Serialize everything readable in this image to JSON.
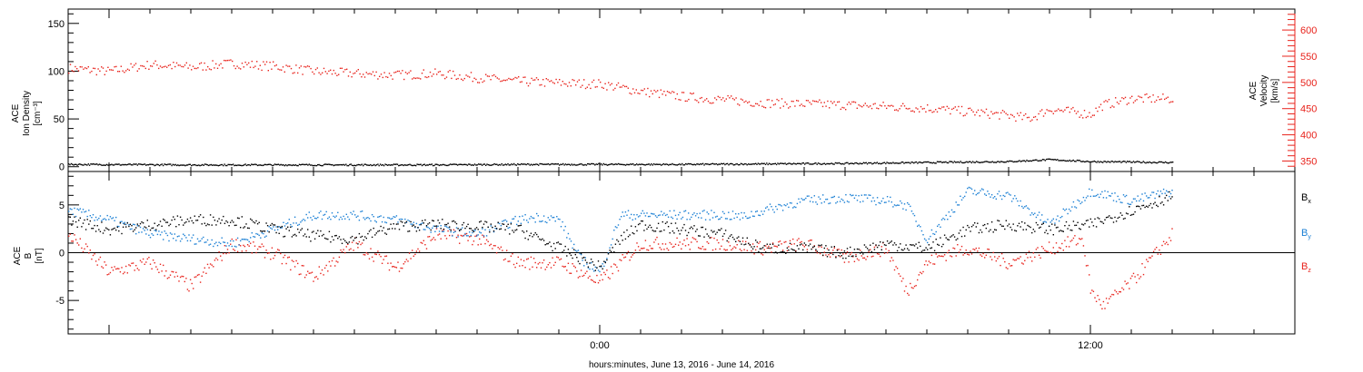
{
  "xlabel": "hours:minutes, June 13, 2016 - June 14, 2016",
  "colors": {
    "density": "#000000",
    "velocity": "#e8231c",
    "bx": "#000000",
    "by": "#1a7fd4",
    "bz": "#e8231c",
    "axis": "#000000"
  },
  "chart_data": [
    {
      "type": "scatter",
      "panel": "top",
      "ylabel": [
        "ACE",
        "Ion Density",
        "[cm⁻³]"
      ],
      "ylabel2": [
        "ACE",
        "Velocity",
        "[km/s]"
      ],
      "xlim_hours": [
        -13.0,
        17.0
      ],
      "x_tick_labels": [
        {
          "hour": 0,
          "label": "0:00"
        },
        {
          "hour": 12,
          "label": "12:00"
        }
      ],
      "ylim": [
        -5,
        165
      ],
      "y_ticks": [
        0,
        50,
        100,
        150
      ],
      "ylim2": [
        330,
        640
      ],
      "y2_ticks": [
        350,
        400,
        450,
        500,
        550,
        600
      ],
      "grid": false,
      "series": [
        {
          "axis": "left",
          "x_hours": [
            -13.0,
            -10.0,
            -7.0,
            -4.0,
            -2.0,
            0.0,
            2.0,
            4.0,
            6.0,
            8.0,
            9.0,
            10.0,
            11.0,
            12.0,
            13.0,
            14.0
          ],
          "values": [
            3,
            2.5,
            2.5,
            2.5,
            3,
            3,
            3,
            3.5,
            4,
            5,
            5.5,
            6,
            8,
            6,
            5.5,
            5
          ]
        },
        {
          "name": "Velocity",
          "axis": "right",
          "x_hours": [
            -13.0,
            -12.0,
            -11.0,
            -10.0,
            -9.0,
            -8.0,
            -7.0,
            -6.0,
            -5.0,
            -4.0,
            -3.0,
            -2.0,
            -1.0,
            0.0,
            1.0,
            2.0,
            3.0,
            4.0,
            5.0,
            6.0,
            7.0,
            8.0,
            9.0,
            10.0,
            10.5,
            11.0,
            11.8,
            12.0,
            12.3,
            13.0,
            14.0
          ],
          "values": [
            528,
            522,
            535,
            530,
            537,
            532,
            522,
            518,
            515,
            518,
            510,
            503,
            500,
            498,
            484,
            474,
            468,
            462,
            460,
            458,
            455,
            452,
            445,
            438,
            432,
            450,
            442,
            440,
            458,
            470,
            470
          ]
        }
      ]
    },
    {
      "type": "scatter",
      "panel": "bottom",
      "ylabel": [
        "ACE",
        "B",
        "[nT]"
      ],
      "xlim_hours": [
        -13.0,
        17.0
      ],
      "ylim": [
        -8.5,
        8.5
      ],
      "y_ticks": [
        -5,
        0,
        5
      ],
      "zero_line": true,
      "grid": false,
      "series": [
        {
          "name": "Bx",
          "legend_main": "B",
          "legend_sub": "x",
          "x_hours": [
            -13.0,
            -12.0,
            -11.0,
            -10.0,
            -9.0,
            -8.0,
            -7.0,
            -6.0,
            -5.0,
            -4.0,
            -3.0,
            -2.0,
            -1.0,
            -0.5,
            0.0,
            0.5,
            1.0,
            2.0,
            3.0,
            4.0,
            5.0,
            6.0,
            7.0,
            8.0,
            9.0,
            10.0,
            11.0,
            12.0,
            13.0,
            14.0
          ],
          "values": [
            3.5,
            2.5,
            3.0,
            3.5,
            3.5,
            2.5,
            1.8,
            1.5,
            2.8,
            3.0,
            2.8,
            2.5,
            0.5,
            -0.5,
            -1.5,
            1.5,
            3.0,
            2.5,
            2.0,
            0.5,
            0.5,
            0.0,
            1.0,
            0.5,
            2.5,
            3.0,
            2.5,
            3.0,
            4.5,
            6.0
          ]
        },
        {
          "name": "By",
          "legend_main": "B",
          "legend_sub": "y",
          "x_hours": [
            -13.0,
            -12.0,
            -11.0,
            -10.0,
            -9.0,
            -8.0,
            -7.0,
            -6.0,
            -5.0,
            -4.0,
            -3.0,
            -2.0,
            -1.5,
            -1.0,
            -0.5,
            0.0,
            0.5,
            1.0,
            2.0,
            3.0,
            3.5,
            4.0,
            5.0,
            6.0,
            7.0,
            7.5,
            8.0,
            9.0,
            10.0,
            11.0,
            12.0,
            13.0,
            14.0
          ],
          "values": [
            4.5,
            3.5,
            2.0,
            1.5,
            1.0,
            2.5,
            4.0,
            4.0,
            3.5,
            2.5,
            2.0,
            3.5,
            3.8,
            3.5,
            -0.5,
            -2.0,
            4.0,
            4.0,
            4.0,
            4.0,
            3.8,
            4.5,
            5.5,
            5.8,
            5.5,
            5.0,
            1.5,
            6.5,
            6.0,
            3.0,
            6.5,
            5.5,
            6.5
          ]
        },
        {
          "name": "Bz",
          "legend_main": "B",
          "legend_sub": "z",
          "x_hours": [
            -13.0,
            -12.0,
            -11.0,
            -10.0,
            -9.0,
            -8.0,
            -7.0,
            -6.0,
            -5.0,
            -4.0,
            -3.0,
            -2.0,
            -1.0,
            0.0,
            1.0,
            2.0,
            3.0,
            4.0,
            5.0,
            6.0,
            7.0,
            7.5,
            8.0,
            8.5,
            9.0,
            10.0,
            11.0,
            11.8,
            12.0,
            12.3,
            13.0,
            14.0
          ],
          "values": [
            2.0,
            -2.0,
            -1.0,
            -3.5,
            1.0,
            0.0,
            -2.5,
            1.0,
            -1.5,
            2.0,
            1.5,
            -1.0,
            -1.0,
            -3.0,
            1.0,
            1.0,
            1.0,
            0.5,
            1.0,
            -0.5,
            0.5,
            -4.0,
            -1.0,
            0.0,
            0.5,
            -1.0,
            0.5,
            1.5,
            -4.0,
            -5.5,
            -3.0,
            2.0
          ]
        }
      ]
    }
  ]
}
